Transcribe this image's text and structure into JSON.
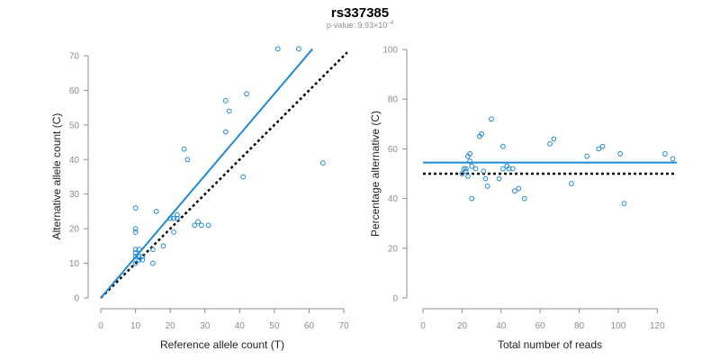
{
  "title": "rs337385",
  "subtitle_prefix": "p-value: 9.93×10",
  "subtitle_exp": "−4",
  "colors": {
    "points": "#1f8ad8",
    "fit": "#1f8ad8",
    "reference": "#000000",
    "axes": "#8c8c8c"
  },
  "chart_data": [
    {
      "type": "scatter",
      "xlabel": "Reference allele count (T)",
      "ylabel": "Alternative allele count (C)",
      "xlim": [
        0,
        70
      ],
      "ylim": [
        0,
        70
      ],
      "xticks": [
        0,
        10,
        20,
        30,
        40,
        50,
        60,
        70
      ],
      "yticks": [
        0,
        10,
        20,
        30,
        40,
        50,
        60,
        70
      ],
      "grid": false,
      "x": [
        51,
        57,
        42,
        36,
        37,
        36,
        24,
        25,
        21,
        22,
        20,
        16,
        10,
        10,
        10,
        18,
        20,
        21,
        22,
        29,
        31,
        27,
        28,
        41,
        64,
        15,
        15,
        11,
        10,
        10,
        11,
        12,
        10,
        11,
        12,
        10
      ],
      "y": [
        72,
        72,
        59,
        57,
        54,
        48,
        43,
        40,
        23,
        24,
        23,
        25,
        26,
        20,
        19,
        15,
        23,
        19,
        23,
        21,
        21,
        21,
        22,
        35,
        39,
        10,
        14,
        14,
        14,
        13,
        12,
        11,
        12,
        11,
        12,
        10
      ],
      "fit_line": {
        "x": [
          0,
          61
        ],
        "y": [
          0,
          72
        ]
      },
      "reference_line": {
        "x": [
          0,
          71
        ],
        "y": [
          0,
          71
        ]
      }
    },
    {
      "type": "scatter",
      "xlabel": "Total number of reads",
      "ylabel": "Percentage alternative (C)",
      "xlim": [
        0,
        130
      ],
      "ylim": [
        0,
        100
      ],
      "xticks": [
        0,
        20,
        40,
        60,
        80,
        100,
        120
      ],
      "yticks": [
        0,
        20,
        40,
        60,
        80,
        100
      ],
      "grid": false,
      "x": [
        20,
        21,
        22,
        22,
        23,
        23,
        24,
        24,
        25,
        25,
        27,
        29,
        30,
        31,
        32,
        33,
        35,
        39,
        41,
        41,
        43,
        44,
        46,
        47,
        49,
        52,
        65,
        67,
        76,
        84,
        90,
        92,
        101,
        103,
        124,
        128
      ],
      "y": [
        50,
        52,
        51,
        52,
        49,
        57,
        58,
        55,
        53,
        40,
        52,
        65,
        66,
        51,
        48,
        45,
        72,
        48,
        61,
        52,
        53,
        52,
        52,
        43,
        44,
        40,
        62,
        64,
        46,
        57,
        60,
        61,
        58,
        38,
        58,
        56
      ],
      "fit_line": {
        "x": [
          0,
          130
        ],
        "y": [
          54.5,
          54.5
        ]
      },
      "reference_line": {
        "x": [
          0,
          130
        ],
        "y": [
          50,
          50
        ]
      }
    }
  ]
}
